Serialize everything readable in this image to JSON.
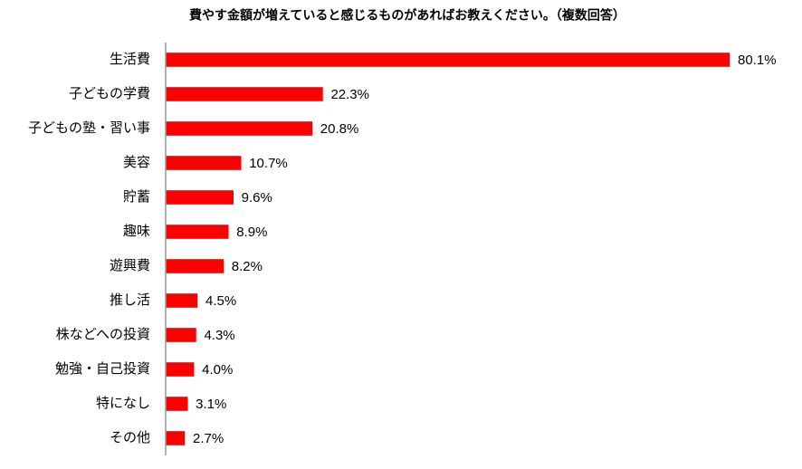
{
  "chart_data": {
    "type": "bar",
    "orientation": "horizontal",
    "title": "費やす金額が増えていると感じるものがあればお教えください。（複数回答）",
    "categories": [
      "生活費",
      "子どもの学費",
      "子どもの塾・習い事",
      "美容",
      "貯蓄",
      "趣味",
      "遊興費",
      "推し活",
      "株などへの投資",
      "勉強・自己投資",
      "特になし",
      "その他"
    ],
    "values": [
      80.1,
      22.3,
      20.8,
      10.7,
      9.6,
      8.9,
      8.2,
      4.5,
      4.3,
      4.0,
      3.1,
      2.7
    ],
    "value_labels": [
      "80.1%",
      "22.3%",
      "20.8%",
      "10.7%",
      "9.6%",
      "8.9%",
      "8.2%",
      "4.5%",
      "4.3%",
      "4.0%",
      "3.1%",
      "2.7%"
    ],
    "color": "#ff0000",
    "xlim": [
      0,
      90
    ]
  }
}
